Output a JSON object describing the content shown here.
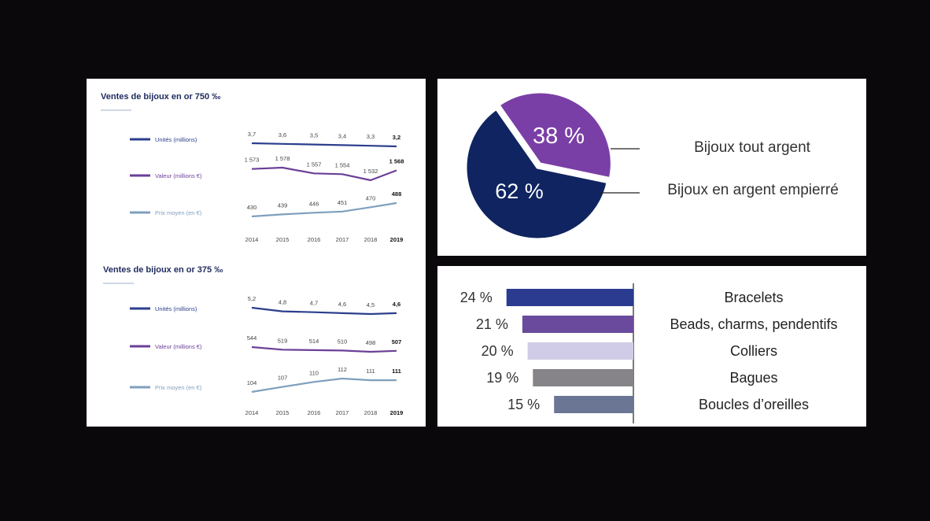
{
  "colors": {
    "units": "#2c3e8c",
    "value": "#6b3f98",
    "price": "#7f9fbd",
    "title": "#1e2a5e",
    "pie_silver": "#0f2460",
    "pie_gilded": "#7a3fa6"
  },
  "chart_data": [
    {
      "type": "line",
      "title": "Ventes de bijoux en or 750 ‰",
      "x": [
        "2014",
        "2015",
        "2016",
        "2017",
        "2018",
        "2019"
      ],
      "series": [
        {
          "name": "Unités (millions)",
          "values": [
            3.7,
            3.6,
            3.5,
            3.4,
            3.3,
            3.2
          ],
          "labels": [
            "3,7",
            "3,6",
            "3,5",
            "3,4",
            "3,3",
            "3,2"
          ]
        },
        {
          "name": "Valeur (millions €)",
          "values": [
            1573,
            1578,
            1557,
            1554,
            1532,
            1568
          ],
          "labels": [
            "1 573",
            "1 578",
            "1 557",
            "1 554",
            "1 532",
            "1 568"
          ]
        },
        {
          "name": "Prix moyen (en €)",
          "values": [
            430,
            439,
            446,
            451,
            470,
            488
          ],
          "labels": [
            "430",
            "439",
            "446",
            "451",
            "470",
            "488"
          ]
        }
      ]
    },
    {
      "type": "line",
      "title": "Ventes de bijoux en or 375 ‰",
      "x": [
        "2014",
        "2015",
        "2016",
        "2017",
        "2018",
        "2019"
      ],
      "series": [
        {
          "name": "Unités (millions)",
          "values": [
            5.2,
            4.8,
            4.7,
            4.6,
            4.5,
            4.6
          ],
          "labels": [
            "5,2",
            "4,8",
            "4,7",
            "4,6",
            "4,5",
            "4,6"
          ]
        },
        {
          "name": "Valeur (millions €)",
          "values": [
            544,
            519,
            514,
            510,
            498,
            507
          ],
          "labels": [
            "544",
            "519",
            "514",
            "510",
            "498",
            "507"
          ]
        },
        {
          "name": "Prix moyen (en €)",
          "values": [
            104,
            107,
            110,
            112,
            111,
            111
          ],
          "labels": [
            "104",
            "107",
            "110",
            "112",
            "111",
            "111"
          ]
        }
      ]
    },
    {
      "type": "pie",
      "slices": [
        {
          "name": "Bijoux tout argent",
          "value": 38,
          "label": "38 %",
          "color": "#7a3fa6"
        },
        {
          "name": "Bijoux en argent empierré",
          "value": 62,
          "label": "62 %",
          "color": "#0f2460"
        }
      ]
    },
    {
      "type": "bar",
      "orientation": "horizontal",
      "categories": [
        "Bracelets",
        "Beads, charms, pendentifs",
        "Colliers",
        "Bagues",
        "Boucles d’oreilles"
      ],
      "values": [
        24,
        21,
        20,
        19,
        15
      ],
      "labels": [
        "24 %",
        "21 %",
        "20 %",
        "19 %",
        "15 %"
      ],
      "colors": [
        "#2b3b8f",
        "#6a4a9c",
        "#d0cbe6",
        "#868389",
        "#6a7694"
      ]
    }
  ]
}
